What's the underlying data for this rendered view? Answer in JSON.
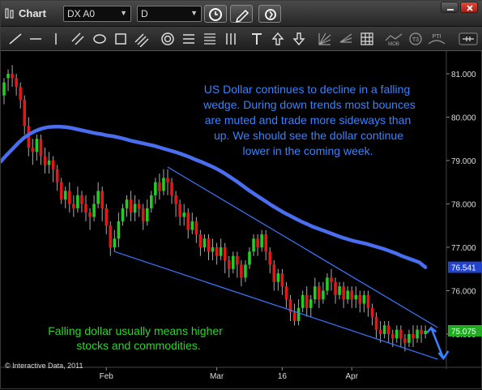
{
  "window": {
    "title": "Chart",
    "symbol": "DX A0",
    "period": "D"
  },
  "colors": {
    "up": "#22cc22",
    "down": "#e01818",
    "ma": "#4a6ef0",
    "wedge": "#3a78ff",
    "note_blue": "#3a82ff",
    "note_green": "#29d629",
    "price_blue": "#2244cc",
    "price_green": "#22aa22"
  },
  "annotations": {
    "top_note": [
      "US Dollar continues to decline in a falling",
      "wedge. During down trends most bounces",
      "are muted and trade more sideways than",
      "up. We should see the dollar continue",
      "lower in the coming week."
    ],
    "bottom_note": [
      "Falling dollar usually means higher",
      "stocks and commodities."
    ],
    "copyright": "© Interactive Data, 2011"
  },
  "chart_data": {
    "type": "candlestick",
    "y_ticks": [
      "81.000",
      "80.000",
      "79.000",
      "78.000",
      "77.000",
      "76.000",
      "75.000"
    ],
    "y_tick_values": [
      81,
      80,
      79,
      78,
      77,
      76,
      75
    ],
    "ylim": [
      74.3,
      81.5
    ],
    "x_tick_labels": [
      "Feb",
      "Mar",
      "16",
      "Apr"
    ],
    "x_tick_index": [
      25,
      52,
      68,
      85
    ],
    "last_price_labels": [
      {
        "text": "76.541",
        "value": 76.541,
        "series": "ma"
      },
      {
        "text": "75.075",
        "value": 75.075,
        "series": "price"
      }
    ],
    "ma_values": [
      78.98,
      79.13,
      79.27,
      79.41,
      79.53,
      79.62,
      79.69,
      79.74,
      79.77,
      79.78,
      79.78,
      79.77,
      79.75,
      79.72,
      79.69,
      79.66,
      79.63,
      79.61,
      79.58,
      79.56,
      79.53,
      79.5,
      79.46,
      79.43,
      79.4,
      79.37,
      79.34,
      79.3,
      79.26,
      79.22,
      79.18,
      79.13,
      79.08,
      79.02,
      78.97,
      78.91,
      78.85,
      78.78,
      78.7,
      78.61,
      78.52,
      78.42,
      78.32,
      78.23,
      78.14,
      78.05,
      77.96,
      77.88,
      77.8,
      77.73,
      77.66,
      77.59,
      77.53,
      77.47,
      77.42,
      77.37,
      77.32,
      77.27,
      77.22,
      77.18,
      77.14,
      77.11,
      77.08,
      77.04,
      77.0,
      76.96,
      76.91,
      76.86,
      76.8,
      76.75,
      76.7,
      76.65,
      76.54
    ],
    "ma_start_index": 0,
    "wedge_lines": [
      {
        "from_index": 40,
        "from_value": 78.85,
        "to_index": 106,
        "to_value": 75.15
      },
      {
        "from_index": 27,
        "from_value": 76.9,
        "to_index": 106,
        "to_value": 74.42
      }
    ],
    "projection_arrow": {
      "from_index": 106,
      "points": [
        [
          105,
          75.2
        ],
        [
          107,
          74.4
        ]
      ]
    },
    "candles": [
      [
        80.5,
        80.8,
        80.3,
        80.9
      ],
      [
        80.9,
        81.0,
        80.6,
        81.1
      ],
      [
        81.0,
        80.9,
        80.7,
        81.2
      ],
      [
        80.9,
        80.7,
        80.5,
        81.0
      ],
      [
        80.7,
        80.4,
        80.2,
        80.8
      ],
      [
        80.4,
        79.8,
        79.6,
        80.5
      ],
      [
        79.8,
        79.3,
        79.1,
        80.0
      ],
      [
        79.3,
        79.2,
        78.9,
        79.5
      ],
      [
        79.2,
        79.5,
        79.0,
        79.6
      ],
      [
        79.5,
        79.1,
        78.9,
        79.6
      ],
      [
        79.1,
        78.9,
        78.7,
        79.3
      ],
      [
        78.9,
        79.0,
        78.7,
        79.2
      ],
      [
        79.0,
        78.8,
        78.5,
        79.1
      ],
      [
        78.8,
        78.5,
        78.3,
        78.9
      ],
      [
        78.5,
        78.1,
        78.0,
        78.6
      ],
      [
        78.1,
        78.3,
        77.9,
        78.4
      ],
      [
        78.3,
        78.0,
        77.8,
        78.5
      ],
      [
        78.0,
        77.9,
        77.7,
        78.2
      ],
      [
        77.9,
        78.2,
        77.8,
        78.4
      ],
      [
        78.2,
        78.0,
        77.8,
        78.3
      ],
      [
        78.0,
        77.8,
        77.6,
        78.2
      ],
      [
        77.8,
        77.7,
        77.4,
        77.9
      ],
      [
        77.7,
        78.0,
        77.6,
        78.2
      ],
      [
        78.0,
        78.3,
        77.9,
        78.5
      ],
      [
        78.3,
        77.9,
        77.6,
        78.4
      ],
      [
        77.9,
        77.5,
        77.3,
        78.0
      ],
      [
        77.5,
        77.0,
        76.8,
        77.6
      ],
      [
        77.0,
        77.2,
        76.9,
        77.4
      ],
      [
        77.2,
        77.6,
        77.0,
        77.8
      ],
      [
        77.6,
        77.9,
        77.5,
        78.0
      ],
      [
        77.9,
        78.1,
        77.7,
        78.2
      ],
      [
        78.1,
        77.8,
        77.6,
        78.3
      ],
      [
        77.8,
        78.0,
        77.6,
        78.2
      ],
      [
        78.0,
        77.9,
        77.7,
        78.1
      ],
      [
        77.9,
        77.6,
        77.4,
        78.0
      ],
      [
        77.6,
        77.9,
        77.5,
        78.1
      ],
      [
        77.9,
        78.2,
        77.8,
        78.3
      ],
      [
        78.2,
        78.5,
        78.0,
        78.6
      ],
      [
        78.5,
        78.3,
        78.1,
        78.7
      ],
      [
        78.3,
        78.6,
        78.2,
        78.8
      ],
      [
        78.6,
        78.5,
        78.2,
        78.8
      ],
      [
        78.5,
        78.2,
        78.0,
        78.6
      ],
      [
        78.2,
        78.0,
        77.7,
        78.3
      ],
      [
        78.0,
        77.7,
        77.5,
        78.1
      ],
      [
        77.7,
        77.8,
        77.5,
        78.0
      ],
      [
        77.8,
        77.4,
        77.2,
        77.9
      ],
      [
        77.4,
        77.6,
        77.3,
        77.8
      ],
      [
        77.6,
        77.3,
        77.1,
        77.7
      ],
      [
        77.3,
        77.0,
        76.8,
        77.4
      ],
      [
        77.0,
        77.2,
        76.9,
        77.3
      ],
      [
        77.2,
        76.9,
        76.7,
        77.3
      ],
      [
        76.9,
        77.0,
        76.7,
        77.2
      ],
      [
        77.0,
        76.8,
        76.6,
        77.1
      ],
      [
        76.8,
        77.0,
        76.7,
        77.2
      ],
      [
        77.0,
        76.7,
        76.4,
        77.1
      ],
      [
        76.7,
        76.5,
        76.3,
        76.8
      ],
      [
        76.5,
        76.8,
        76.4,
        76.9
      ],
      [
        76.8,
        76.6,
        76.3,
        76.9
      ],
      [
        76.6,
        76.3,
        76.1,
        76.7
      ],
      [
        76.3,
        76.6,
        76.2,
        76.7
      ],
      [
        76.6,
        76.9,
        76.5,
        77.0
      ],
      [
        76.9,
        77.2,
        76.8,
        77.3
      ],
      [
        77.2,
        77.0,
        76.8,
        77.3
      ],
      [
        77.0,
        77.3,
        76.9,
        77.4
      ],
      [
        77.3,
        76.9,
        76.7,
        77.4
      ],
      [
        76.9,
        76.6,
        76.4,
        77.0
      ],
      [
        76.6,
        76.2,
        76.0,
        76.7
      ],
      [
        76.2,
        76.4,
        76.0,
        76.5
      ],
      [
        76.4,
        76.1,
        75.9,
        76.5
      ],
      [
        76.1,
        75.8,
        75.6,
        76.2
      ],
      [
        75.8,
        75.5,
        75.3,
        75.9
      ],
      [
        75.5,
        75.3,
        75.2,
        75.7
      ],
      [
        75.3,
        75.6,
        75.2,
        75.8
      ],
      [
        75.6,
        75.9,
        75.5,
        76.0
      ],
      [
        75.9,
        75.6,
        75.4,
        76.1
      ],
      [
        75.6,
        75.8,
        75.4,
        75.9
      ],
      [
        75.8,
        76.1,
        75.7,
        76.3
      ],
      [
        76.1,
        75.8,
        75.6,
        76.2
      ],
      [
        75.8,
        76.0,
        75.7,
        76.2
      ],
      [
        76.0,
        76.3,
        75.9,
        76.4
      ],
      [
        76.3,
        76.2,
        76.0,
        76.5
      ],
      [
        76.2,
        75.9,
        75.7,
        76.3
      ],
      [
        75.9,
        76.1,
        75.8,
        76.2
      ],
      [
        76.1,
        75.8,
        75.6,
        76.2
      ],
      [
        75.8,
        76.0,
        75.7,
        76.1
      ],
      [
        76.0,
        75.8,
        75.6,
        76.1
      ],
      [
        75.8,
        75.9,
        75.6,
        76.1
      ],
      [
        75.9,
        75.7,
        75.5,
        76.0
      ],
      [
        75.7,
        75.9,
        75.5,
        76.0
      ],
      [
        75.9,
        75.6,
        75.4,
        76.0
      ],
      [
        75.6,
        75.4,
        75.2,
        75.7
      ],
      [
        75.4,
        75.1,
        74.9,
        75.5
      ],
      [
        75.1,
        75.0,
        74.8,
        75.3
      ],
      [
        75.0,
        75.2,
        74.9,
        75.3
      ],
      [
        75.2,
        75.0,
        74.8,
        75.3
      ],
      [
        75.0,
        74.9,
        74.7,
        75.1
      ],
      [
        74.9,
        75.1,
        74.8,
        75.2
      ],
      [
        75.1,
        74.9,
        74.7,
        75.2
      ],
      [
        74.9,
        74.8,
        74.6,
        75.0
      ],
      [
        74.8,
        75.0,
        74.7,
        75.1
      ],
      [
        75.0,
        74.9,
        74.7,
        75.2
      ],
      [
        74.9,
        75.1,
        74.8,
        75.2
      ],
      [
        75.1,
        75.0,
        74.8,
        75.2
      ],
      [
        75.0,
        75.075,
        74.9,
        75.2
      ]
    ]
  }
}
